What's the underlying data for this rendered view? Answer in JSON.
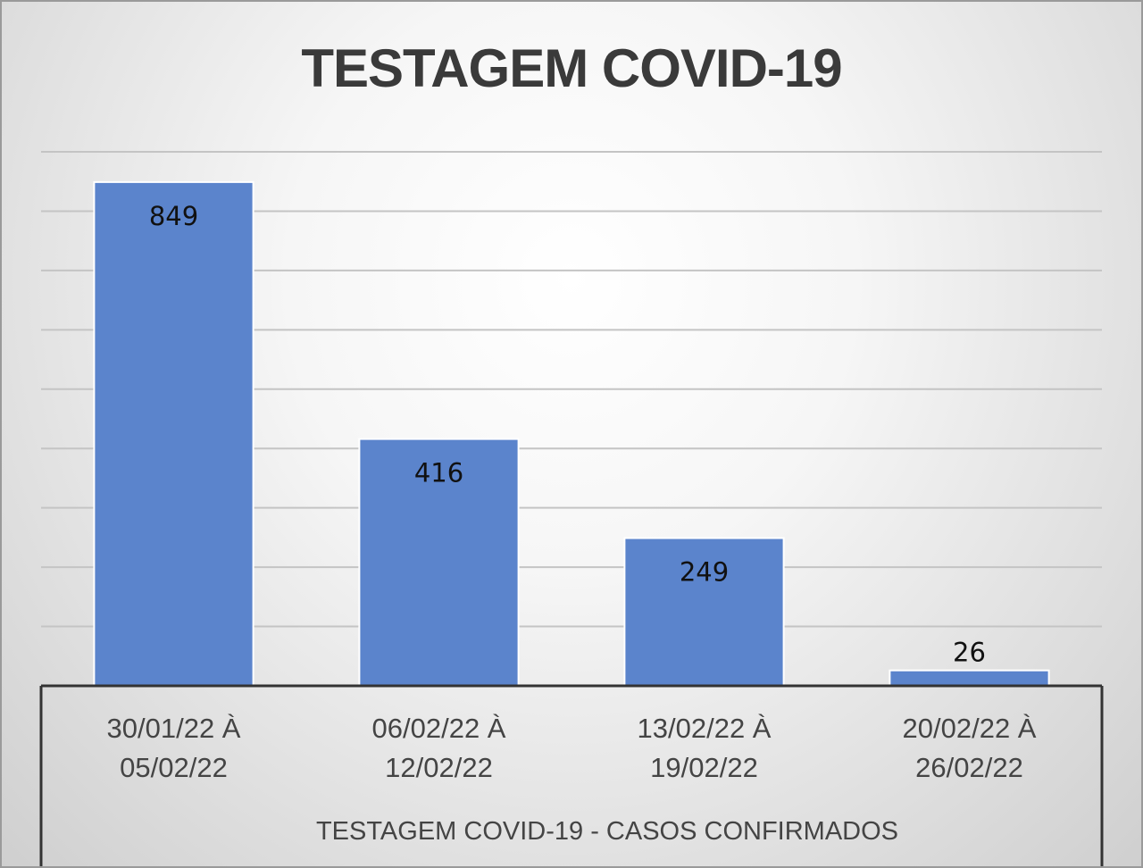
{
  "chart_data": {
    "type": "bar",
    "title": "TESTAGEM COVID-19",
    "categories": [
      [
        "30/01/22 À",
        "05/02/22"
      ],
      [
        "06/02/22 À",
        "12/02/22"
      ],
      [
        "13/02/22 À",
        "19/02/22"
      ],
      [
        "20/02/22 À",
        "26/02/22"
      ]
    ],
    "values": [
      849,
      416,
      249,
      26
    ],
    "xlabel": "TESTAGEM COVID-19 - CASOS CONFIRMADOS",
    "ylabel": "",
    "ylim": [
      0,
      900
    ],
    "grid": true,
    "legend": "none",
    "bar_color": "#5b84cc"
  }
}
